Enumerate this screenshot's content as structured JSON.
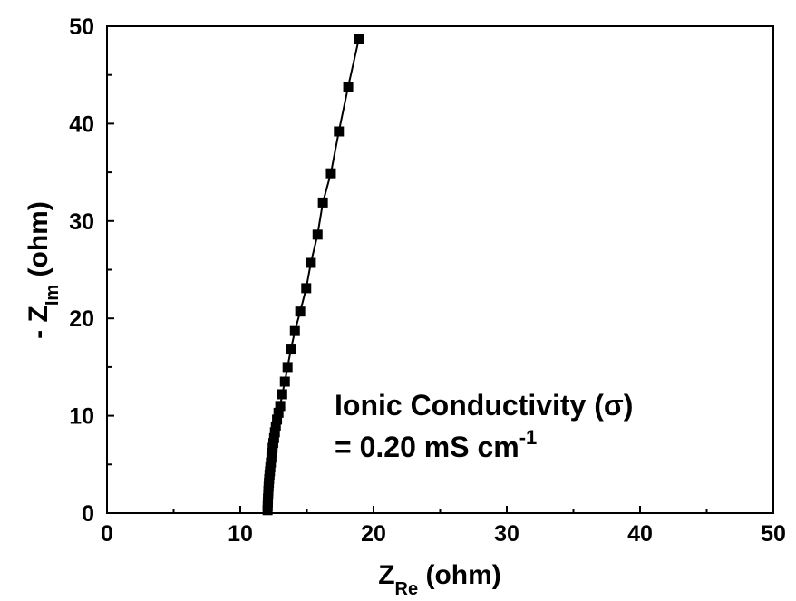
{
  "chart_data": {
    "type": "scatter",
    "title": "",
    "xlabel": {
      "main": "Z",
      "sub": "Re",
      "rest": " (ohm)"
    },
    "ylabel": {
      "prefix": "- Z",
      "sub": "Im",
      "rest": " (ohm)"
    },
    "xlim": [
      0,
      50
    ],
    "ylim": [
      0,
      50
    ],
    "x_ticks": [
      "0",
      "10",
      "20",
      "30",
      "40",
      "50"
    ],
    "y_ticks": [
      "0",
      "10",
      "20",
      "30",
      "40",
      "50"
    ],
    "grid": false,
    "marker": "square",
    "marker_color": "#000000",
    "line_connected": true,
    "series": [
      {
        "x": [
          12.05,
          12.06,
          12.07,
          12.08,
          12.1,
          12.11,
          12.13,
          12.15,
          12.17,
          12.2,
          12.23,
          12.26,
          12.3,
          12.34,
          12.38,
          12.43,
          12.48,
          12.54,
          12.6,
          12.67,
          12.76,
          12.87,
          13.0,
          13.15,
          13.35,
          13.55,
          13.8,
          14.1,
          14.5,
          14.95,
          15.3,
          15.8,
          16.2,
          16.8,
          17.4,
          18.1,
          18.9
        ],
        "y": [
          0.3,
          0.7,
          1.1,
          1.5,
          1.9,
          2.3,
          2.7,
          3.1,
          3.5,
          3.9,
          4.3,
          4.7,
          5.2,
          5.7,
          6.2,
          6.7,
          7.2,
          7.7,
          8.3,
          8.9,
          9.6,
          10.3,
          11.0,
          12.2,
          13.5,
          15.0,
          16.8,
          18.7,
          20.7,
          23.1,
          25.7,
          28.6,
          31.9,
          34.9,
          39.2,
          43.8,
          48.7
        ]
      }
    ],
    "annotation": {
      "line1": "Ionic Conductivity (σ)",
      "line2": "= 0.20 mS cm",
      "line2_sup": "-1"
    }
  }
}
